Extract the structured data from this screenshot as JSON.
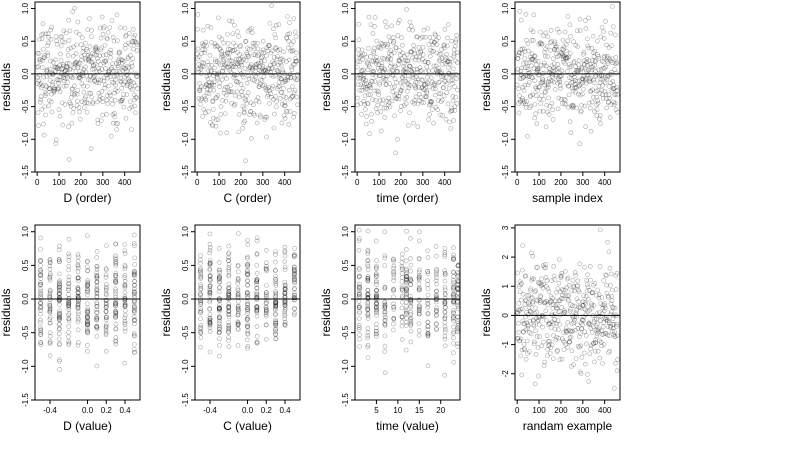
{
  "figure": {
    "point_color": "#000000",
    "point_alpha": 0.35,
    "zero_line_color": "#000000"
  },
  "chart_data": [
    {
      "id": "d-order",
      "type": "scatter",
      "title": "",
      "xlabel": "D (order)",
      "ylabel": "residuals",
      "xlim": [
        -10,
        470
      ],
      "ylim": [
        -1.5,
        1.1
      ],
      "xticks": [
        0,
        100,
        200,
        300,
        400
      ],
      "xtick_labels": [
        "0",
        "100",
        "200",
        "300",
        "400"
      ],
      "yticks": [
        -1.5,
        -1.0,
        -0.5,
        0.0,
        0.5,
        1.0
      ],
      "ytick_labels": [
        "-1.5",
        "-1.0",
        "-0.5",
        "0.0",
        "0.5",
        "1.0"
      ],
      "n_points": 460,
      "x_kind": "index",
      "zero_line": 0
    },
    {
      "id": "c-order",
      "type": "scatter",
      "title": "",
      "xlabel": "C (order)",
      "ylabel": "residuals",
      "xlim": [
        -10,
        470
      ],
      "ylim": [
        -1.5,
        1.1
      ],
      "xticks": [
        0,
        100,
        200,
        300,
        400
      ],
      "xtick_labels": [
        "0",
        "100",
        "200",
        "300",
        "400"
      ],
      "yticks": [
        -1.5,
        -1.0,
        -0.5,
        0.0,
        0.5,
        1.0
      ],
      "ytick_labels": [
        "-1.5",
        "-1.0",
        "-0.5",
        "0.0",
        "0.5",
        "1.0"
      ],
      "n_points": 460,
      "x_kind": "index",
      "zero_line": 0
    },
    {
      "id": "time-order",
      "type": "scatter",
      "title": "",
      "xlabel": "time (order)",
      "ylabel": "residuals",
      "xlim": [
        -10,
        470
      ],
      "ylim": [
        -1.5,
        1.1
      ],
      "xticks": [
        0,
        100,
        200,
        300,
        400
      ],
      "xtick_labels": [
        "0",
        "100",
        "200",
        "300",
        "400"
      ],
      "yticks": [
        -1.5,
        -1.0,
        -0.5,
        0.0,
        0.5,
        1.0
      ],
      "ytick_labels": [
        "-1.5",
        "-1.0",
        "-0.5",
        "0.0",
        "0.5",
        "1.0"
      ],
      "n_points": 460,
      "x_kind": "index",
      "zero_line": 0
    },
    {
      "id": "sample-index",
      "type": "scatter",
      "title": "",
      "xlabel": "sample index",
      "ylabel": "residuals",
      "xlim": [
        -10,
        470
      ],
      "ylim": [
        -1.5,
        1.1
      ],
      "xticks": [
        0,
        100,
        200,
        300,
        400
      ],
      "xtick_labels": [
        "0",
        "100",
        "200",
        "300",
        "400"
      ],
      "yticks": [
        -1.5,
        -1.0,
        -0.5,
        0.0,
        0.5,
        1.0
      ],
      "ytick_labels": [
        "-1.5",
        "-1.0",
        "-0.5",
        "0.0",
        "0.5",
        "1.0"
      ],
      "n_points": 460,
      "x_kind": "index",
      "zero_line": 0
    },
    {
      "id": "d-value",
      "type": "scatter",
      "title": "",
      "xlabel": "D (value)",
      "ylabel": "residuals",
      "xlim": [
        -0.56,
        0.56
      ],
      "ylim": [
        -1.5,
        1.1
      ],
      "xticks": [
        -0.4,
        0.0,
        0.2,
        0.4
      ],
      "xtick_labels": [
        "-0.4",
        "0.0",
        "0.2",
        "0.4"
      ],
      "yticks": [
        -1.5,
        -1.0,
        -0.5,
        0.0,
        0.5,
        1.0
      ],
      "ytick_labels": [
        "-1.5",
        "-1.0",
        "-0.5",
        "0.0",
        "0.5",
        "1.0"
      ],
      "n_points": 460,
      "x_kind": "discrete",
      "x_levels": [
        -0.5,
        -0.4,
        -0.3,
        -0.2,
        -0.1,
        0.0,
        0.1,
        0.2,
        0.3,
        0.4,
        0.5
      ],
      "zero_line": 0
    },
    {
      "id": "c-value",
      "type": "scatter",
      "title": "",
      "xlabel": "C (value)",
      "ylabel": "residuals",
      "xlim": [
        -0.56,
        0.56
      ],
      "ylim": [
        -1.5,
        1.1
      ],
      "xticks": [
        -0.4,
        0.0,
        0.2,
        0.4
      ],
      "xtick_labels": [
        "-0.4",
        "0.0",
        "0.2",
        "0.4"
      ],
      "yticks": [
        -1.5,
        -1.0,
        -0.5,
        0.0,
        0.5,
        1.0
      ],
      "ytick_labels": [
        "-1.5",
        "-1.0",
        "-0.5",
        "0.0",
        "0.5",
        "1.0"
      ],
      "n_points": 460,
      "x_kind": "discrete",
      "x_levels": [
        -0.5,
        -0.4,
        -0.3,
        -0.2,
        -0.1,
        0.0,
        0.1,
        0.2,
        0.3,
        0.4,
        0.5
      ],
      "zero_line": 0
    },
    {
      "id": "time-value",
      "type": "scatter",
      "title": "",
      "xlabel": "time (value)",
      "ylabel": "residuals",
      "xlim": [
        0,
        24.5
      ],
      "ylim": [
        -1.5,
        1.1
      ],
      "xticks": [
        5,
        10,
        15,
        20
      ],
      "xtick_labels": [
        "5",
        "10",
        "15",
        "20"
      ],
      "yticks": [
        -1.5,
        -1.0,
        -0.5,
        0.0,
        0.5,
        1.0
      ],
      "ytick_labels": [
        "-1.5",
        "-1.0",
        "-0.5",
        "0.0",
        "0.5",
        "1.0"
      ],
      "n_points": 460,
      "x_kind": "discrete",
      "x_levels": [
        1,
        3,
        5,
        7,
        9,
        11,
        12,
        13,
        15,
        17,
        19,
        21,
        23,
        24
      ],
      "zero_line": 0
    },
    {
      "id": "random-example",
      "type": "scatter",
      "title": "",
      "xlabel": "randam example",
      "ylabel": "residuals",
      "xlim": [
        -10,
        470
      ],
      "ylim": [
        -2.9,
        3.1
      ],
      "xticks": [
        0,
        100,
        200,
        300,
        400
      ],
      "xtick_labels": [
        "0",
        "100",
        "200",
        "300",
        "400"
      ],
      "yticks": [
        -2,
        -1,
        0,
        1,
        2,
        3
      ],
      "ytick_labels": [
        "-2",
        "-1",
        "0",
        "1",
        "2",
        "3"
      ],
      "n_points": 460,
      "x_kind": "index",
      "zero_line": 0
    }
  ]
}
